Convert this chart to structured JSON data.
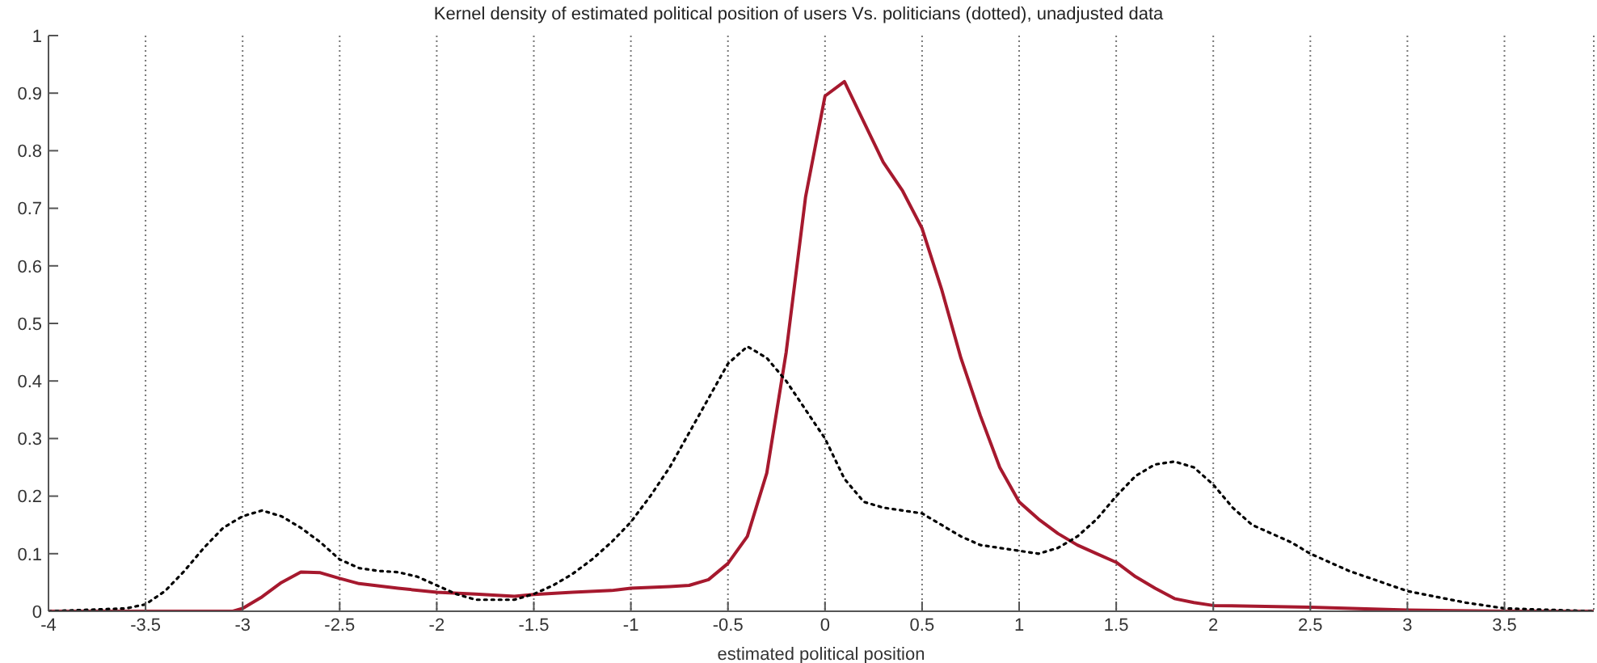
{
  "chart_data": {
    "type": "line",
    "title": "Kernel density of estimated political position of users Vs. politicians (dotted), unadjusted data",
    "xlabel": "estimated political position",
    "xlim": [
      -4,
      3.96
    ],
    "xticks": [
      -4,
      -3.5,
      -3,
      -2.5,
      -2,
      -1.5,
      -1,
      -0.5,
      0,
      0.5,
      1,
      1.5,
      2,
      2.5,
      3,
      3.5
    ],
    "ylim": [
      0,
      1
    ],
    "yticks": [
      0,
      0.1,
      0.2,
      0.3,
      0.4,
      0.5,
      0.6,
      0.7,
      0.8,
      0.9,
      1
    ],
    "grid": "x",
    "marker": "none",
    "legend": false,
    "series": [
      {
        "color": "#a6192e",
        "line_style": "solid",
        "x": [
          -4,
          -3.5,
          -3.05,
          -3,
          -2.9,
          -2.8,
          -2.7,
          -2.6,
          -2.5,
          -2.4,
          -2.2,
          -2,
          -1.8,
          -1.6,
          -1.5,
          -1.3,
          -1.1,
          -1,
          -0.8,
          -0.7,
          -0.6,
          -0.5,
          -0.4,
          -0.3,
          -0.2,
          -0.1,
          0,
          0.1,
          0.2,
          0.3,
          0.4,
          0.5,
          0.6,
          0.7,
          0.8,
          0.9,
          1,
          1.1,
          1.2,
          1.3,
          1.4,
          1.5,
          1.6,
          1.7,
          1.8,
          1.9,
          2,
          2.5,
          3,
          3.5,
          3.96
        ],
        "values": [
          0,
          0,
          0,
          0.005,
          0.025,
          0.05,
          0.068,
          0.067,
          0.057,
          0.048,
          0.04,
          0.033,
          0.03,
          0.026,
          0.029,
          0.033,
          0.036,
          0.04,
          0.043,
          0.045,
          0.055,
          0.083,
          0.13,
          0.24,
          0.45,
          0.72,
          0.895,
          0.92,
          0.85,
          0.78,
          0.73,
          0.665,
          0.56,
          0.44,
          0.34,
          0.25,
          0.19,
          0.16,
          0.135,
          0.115,
          0.1,
          0.085,
          0.06,
          0.04,
          0.022,
          0.015,
          0.01,
          0.007,
          0.002,
          0,
          0
        ]
      },
      {
        "color": "#000000",
        "line_style": "dotted",
        "x": [
          -4,
          -3.6,
          -3.5,
          -3.4,
          -3.3,
          -3.2,
          -3.1,
          -3,
          -2.9,
          -2.8,
          -2.7,
          -2.6,
          -2.5,
          -2.4,
          -2.3,
          -2.2,
          -2.1,
          -2,
          -1.9,
          -1.8,
          -1.6,
          -1.5,
          -1.4,
          -1.3,
          -1.2,
          -1.1,
          -1,
          -0.9,
          -0.8,
          -0.7,
          -0.6,
          -0.5,
          -0.4,
          -0.3,
          -0.2,
          -0.1,
          0,
          0.1,
          0.2,
          0.3,
          0.5,
          0.6,
          0.7,
          0.8,
          1,
          1.1,
          1.2,
          1.3,
          1.4,
          1.5,
          1.6,
          1.7,
          1.8,
          1.9,
          2,
          2.1,
          2.2,
          2.4,
          2.5,
          2.7,
          3,
          3.3,
          3.5,
          3.96
        ],
        "values": [
          0,
          0.005,
          0.012,
          0.035,
          0.07,
          0.11,
          0.145,
          0.165,
          0.175,
          0.165,
          0.145,
          0.12,
          0.09,
          0.075,
          0.07,
          0.068,
          0.06,
          0.045,
          0.03,
          0.02,
          0.02,
          0.03,
          0.045,
          0.065,
          0.09,
          0.12,
          0.155,
          0.2,
          0.25,
          0.31,
          0.37,
          0.43,
          0.46,
          0.44,
          0.4,
          0.35,
          0.3,
          0.23,
          0.19,
          0.18,
          0.17,
          0.15,
          0.13,
          0.115,
          0.105,
          0.1,
          0.11,
          0.13,
          0.16,
          0.2,
          0.235,
          0.255,
          0.26,
          0.25,
          0.22,
          0.18,
          0.15,
          0.12,
          0.1,
          0.07,
          0.035,
          0.015,
          0.005,
          0
        ]
      }
    ]
  }
}
